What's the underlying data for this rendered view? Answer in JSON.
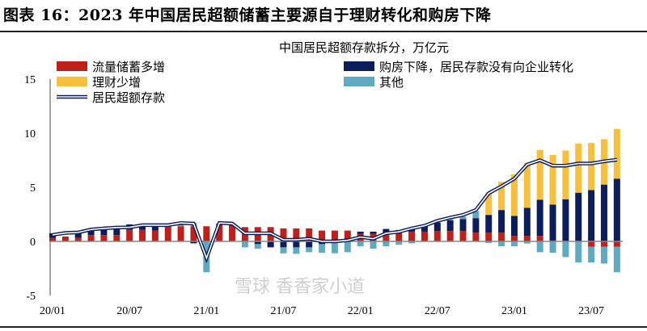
{
  "title": "图表 16：2023 年中国居民超额储蓄主要源自于理财转化和购房下降",
  "watermark": "雪球  香香家小道",
  "chart_data": {
    "type": "bar",
    "subtitle": "中国居民超额存款拆分，万亿元",
    "stacked": true,
    "ylim": [
      -5,
      15
    ],
    "yticks": [
      -5,
      0,
      5,
      10,
      15
    ],
    "xtick_labels": [
      "20/01",
      "20/07",
      "21/01",
      "21/07",
      "22/01",
      "22/07",
      "23/01",
      "23/07"
    ],
    "categories": [
      "20/01",
      "20/02",
      "20/03",
      "20/04",
      "20/05",
      "20/06",
      "20/07",
      "20/08",
      "20/09",
      "20/10",
      "20/11",
      "20/12",
      "21/01",
      "21/02",
      "21/03",
      "21/04",
      "21/05",
      "21/06",
      "21/07",
      "21/08",
      "21/09",
      "21/10",
      "21/11",
      "21/12",
      "22/01",
      "22/02",
      "22/03",
      "22/04",
      "22/05",
      "22/06",
      "22/07",
      "22/08",
      "22/09",
      "22/10",
      "22/11",
      "22/12",
      "23/01",
      "23/02",
      "23/03",
      "23/04",
      "23/05",
      "23/06",
      "23/07",
      "23/08",
      "23/09"
    ],
    "legend_placement": "top",
    "series": [
      {
        "name": "流量储蓄多增",
        "type": "bar",
        "color": "#C0201A",
        "values": [
          0.33,
          0.45,
          0.33,
          0.58,
          0.58,
          0.58,
          1.07,
          1.07,
          1.0,
          1.45,
          1.4,
          1.4,
          1.4,
          1.65,
          1.45,
          1.32,
          1.32,
          1.32,
          1.2,
          1.2,
          1.2,
          1.0,
          1.0,
          1.0,
          0.7,
          0.7,
          0.7,
          0.9,
          0.9,
          0.9,
          0.95,
          0.95,
          0.95,
          0.8,
          0.8,
          0.8,
          0.5,
          0.5,
          0.5,
          0.08,
          0,
          0,
          -0.5,
          -0.5,
          -0.5
        ]
      },
      {
        "name": "购房下降，居民存款没有向企业转化",
        "type": "bar",
        "color": "#0D1D5C",
        "values": [
          0.42,
          0,
          0.5,
          0.62,
          0.62,
          0.57,
          0.5,
          0.43,
          0.5,
          0,
          0,
          -0.18,
          0,
          0,
          0.2,
          0,
          -0.25,
          -0.55,
          -0.55,
          -0.55,
          -0.55,
          -0.25,
          0,
          0,
          0.2,
          0.2,
          0.45,
          0.15,
          0.4,
          0.5,
          0.8,
          1.0,
          1.1,
          1.35,
          1.65,
          2.1,
          1.85,
          2.6,
          3.35,
          3.32,
          3.9,
          4.5,
          4.75,
          5.25,
          5.8
        ]
      },
      {
        "name": "其他",
        "type": "bar",
        "color": "#5FAAC0",
        "values": [
          0,
          0,
          0,
          0,
          0,
          0,
          0,
          0,
          0,
          0,
          0.3,
          0.3,
          -2.85,
          0,
          0,
          -0.55,
          -0.43,
          0,
          -0.55,
          -0.6,
          -0.45,
          -0.8,
          -1.1,
          -1.0,
          -0.45,
          -0.68,
          -0.45,
          -0.3,
          -0.18,
          0,
          0,
          0.1,
          0.25,
          0.65,
          -0.15,
          -0.45,
          -0.45,
          -0.2,
          -1.0,
          -1.05,
          -1.45,
          -1.95,
          -1.45,
          -1.55,
          -2.35
        ]
      },
      {
        "name": "理财少增",
        "type": "bar",
        "color": "#F7C03C",
        "values": [
          0,
          0,
          0,
          0,
          0,
          0,
          0,
          0,
          0,
          0,
          0,
          0,
          0,
          0,
          0,
          0,
          0,
          0,
          0,
          0,
          0,
          0,
          0,
          0,
          0,
          0,
          0,
          0,
          0,
          0,
          0,
          0,
          0,
          0,
          2.05,
          2.6,
          3.85,
          4.15,
          4.6,
          4.6,
          4.5,
          4.55,
          4.35,
          4.2,
          4.6
        ]
      },
      {
        "name": "居民超额存款",
        "type": "line",
        "color": "#0D1D5C",
        "values": [
          0.6,
          0.78,
          0.83,
          1.1,
          1.2,
          1.28,
          1.3,
          1.5,
          1.5,
          1.5,
          1.7,
          1.65,
          -1.55,
          1.7,
          1.65,
          0.75,
          0.75,
          0.75,
          0.15,
          0.15,
          0.25,
          0,
          0,
          0.1,
          0.4,
          0.25,
          0.75,
          0.88,
          1.2,
          1.45,
          1.9,
          2.2,
          2.45,
          2.9,
          4.45,
          5.1,
          5.8,
          7.1,
          7.5,
          7.0,
          7.0,
          7.2,
          7.2,
          7.4,
          7.55
        ]
      }
    ]
  }
}
